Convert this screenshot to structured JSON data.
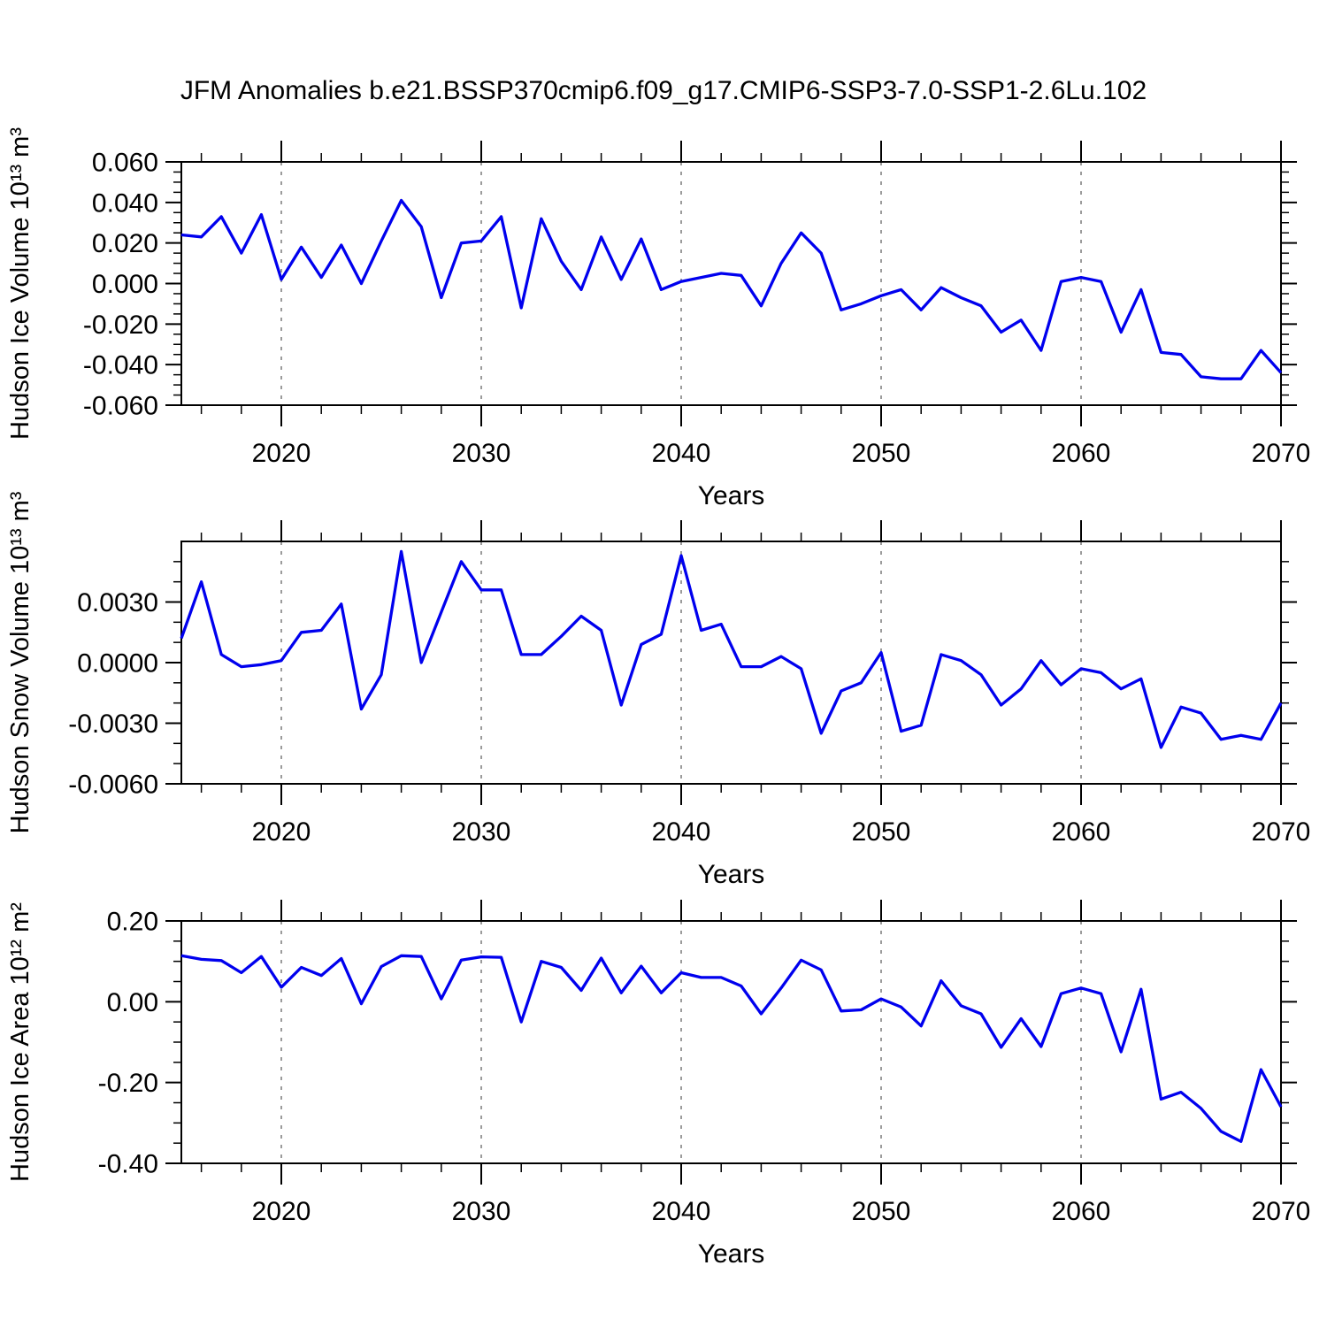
{
  "title": "JFM Anomalies b.e21.BSSP370cmip6.f09_g17.CMIP6-SSP3-7.0-SSP1-2.6Lu.102",
  "colors": {
    "line": "#0000ee",
    "frame": "#000000",
    "tick": "#000000",
    "grid": "#7a7a7a",
    "text": "#000000"
  },
  "chart_data": [
    {
      "type": "line",
      "ylabel": "Hudson Ice Volume 10¹³ m³",
      "xlabel": "Years",
      "x_start": 2015,
      "x_end": 2070,
      "ylim": [
        -0.06,
        0.06
      ],
      "ytick_values": [
        0.06,
        0.04,
        0.02,
        0.0,
        -0.02,
        -0.04,
        -0.06
      ],
      "ytick_labels": [
        "0.060",
        "0.040",
        "0.020",
        "0.000",
        "-0.020",
        "-0.040",
        "-0.060"
      ],
      "yminor_step": 0.005,
      "xtick_values": [
        2020,
        2030,
        2040,
        2050,
        2060,
        2070
      ],
      "xtick_labels": [
        "2020",
        "2030",
        "2040",
        "2050",
        "2060",
        "2070"
      ],
      "xminor_step": 2,
      "gridline_years": [
        2020,
        2030,
        2040,
        2050,
        2060
      ],
      "values": [
        0.024,
        0.023,
        0.033,
        0.015,
        0.034,
        0.002,
        0.018,
        0.003,
        0.019,
        0.0,
        0.021,
        0.041,
        0.028,
        -0.007,
        0.02,
        0.021,
        0.033,
        -0.012,
        0.032,
        0.011,
        -0.003,
        0.023,
        0.002,
        0.022,
        -0.003,
        0.001,
        0.003,
        0.005,
        0.004,
        -0.011,
        0.01,
        0.025,
        0.015,
        -0.013,
        -0.01,
        -0.006,
        -0.003,
        -0.013,
        -0.002,
        -0.007,
        -0.011,
        -0.024,
        -0.018,
        -0.033,
        0.001,
        0.003,
        0.001,
        -0.024,
        -0.003,
        -0.034,
        -0.035,
        -0.046,
        -0.047,
        -0.047,
        -0.033,
        -0.044
      ]
    },
    {
      "type": "line",
      "ylabel": "Hudson Snow Volume 10¹³ m³",
      "xlabel": "Years",
      "x_start": 2015,
      "x_end": 2070,
      "ylim": [
        -0.006,
        0.006
      ],
      "ytick_values": [
        0.003,
        0.0,
        -0.003,
        -0.006
      ],
      "ytick_labels": [
        "0.0030",
        "0.0000",
        "-0.0030",
        "-0.0060"
      ],
      "yminor_step": 0.001,
      "xtick_values": [
        2020,
        2030,
        2040,
        2050,
        2060,
        2070
      ],
      "xtick_labels": [
        "2020",
        "2030",
        "2040",
        "2050",
        "2060",
        "2070"
      ],
      "xminor_step": 2,
      "gridline_years": [
        2020,
        2030,
        2040,
        2050,
        2060
      ],
      "values": [
        0.0012,
        0.004,
        0.0004,
        -0.0002,
        -0.0001,
        0.0001,
        0.0015,
        0.0016,
        0.0029,
        -0.0023,
        -0.0006,
        0.0055,
        0.0,
        0.0025,
        0.005,
        0.0036,
        0.0036,
        0.0004,
        0.0004,
        0.0013,
        0.0023,
        0.0016,
        -0.0021,
        0.0009,
        0.0014,
        0.0053,
        0.0016,
        0.0019,
        -0.0002,
        -0.0002,
        0.0003,
        -0.0003,
        -0.0035,
        -0.0014,
        -0.001,
        0.0005,
        -0.0034,
        -0.0031,
        0.0004,
        0.0001,
        -0.0006,
        -0.0021,
        -0.0013,
        0.0001,
        -0.0011,
        -0.0003,
        -0.0005,
        -0.0013,
        -0.0008,
        -0.0042,
        -0.0022,
        -0.0025,
        -0.0038,
        -0.0036,
        -0.0038,
        -0.002
      ]
    },
    {
      "type": "line",
      "ylabel": "Hudson Ice Area 10¹² m²",
      "xlabel": "Years",
      "x_start": 2015,
      "x_end": 2070,
      "ylim": [
        -0.4,
        0.2
      ],
      "ytick_values": [
        0.2,
        0.0,
        -0.2,
        -0.4
      ],
      "ytick_labels": [
        "0.20",
        "0.00",
        "-0.20",
        "-0.40"
      ],
      "yminor_step": 0.05,
      "xtick_values": [
        2020,
        2030,
        2040,
        2050,
        2060,
        2070
      ],
      "xtick_labels": [
        "2020",
        "2030",
        "2040",
        "2050",
        "2060",
        "2070"
      ],
      "xminor_step": 2,
      "gridline_years": [
        2020,
        2030,
        2040,
        2050,
        2060
      ],
      "values": [
        0.114,
        0.105,
        0.102,
        0.072,
        0.112,
        0.036,
        0.085,
        0.065,
        0.107,
        -0.005,
        0.087,
        0.114,
        0.112,
        0.007,
        0.103,
        0.111,
        0.11,
        -0.05,
        0.1,
        0.085,
        0.028,
        0.108,
        0.022,
        0.088,
        0.022,
        0.072,
        0.06,
        0.06,
        0.039,
        -0.03,
        0.034,
        0.103,
        0.079,
        -0.023,
        -0.02,
        0.007,
        -0.013,
        -0.06,
        0.052,
        -0.01,
        -0.03,
        -0.113,
        -0.042,
        -0.111,
        0.02,
        0.034,
        0.02,
        -0.124,
        0.031,
        -0.241,
        -0.224,
        -0.264,
        -0.321,
        -0.346,
        -0.168,
        -0.26
      ]
    }
  ]
}
